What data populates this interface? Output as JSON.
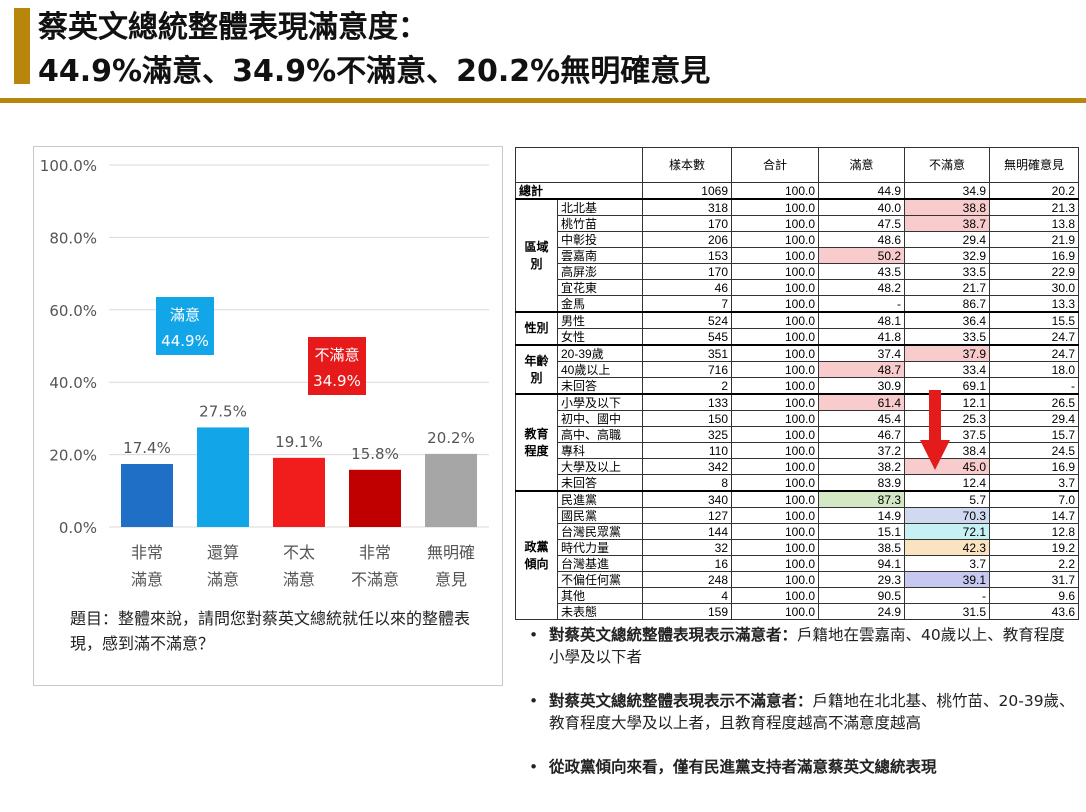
{
  "title": {
    "line1": "蔡英文總統整體表現滿意度：",
    "line2": "44.9%滿意、34.9%不滿意、20.2%無明確意見"
  },
  "chart_data": {
    "type": "bar",
    "categories": [
      [
        "非常",
        "滿意"
      ],
      [
        "還算",
        "滿意"
      ],
      [
        "不太",
        "滿意"
      ],
      [
        "非常",
        "不滿意"
      ],
      [
        "無明確",
        "意見"
      ]
    ],
    "values": [
      17.4,
      27.5,
      19.1,
      15.8,
      20.2
    ],
    "value_labels": [
      "17.4%",
      "27.5%",
      "19.1%",
      "15.8%",
      "20.2%"
    ],
    "colors": [
      "#1f6fc6",
      "#12a6e8",
      "#f11c1c",
      "#c00000",
      "#a6a6a6"
    ],
    "ylim": [
      0,
      100
    ],
    "yticks": [
      "0.0%",
      "20.0%",
      "40.0%",
      "60.0%",
      "80.0%",
      "100.0%"
    ],
    "grid": true,
    "annotations": [
      {
        "text1": "滿意",
        "text2": "44.9%",
        "color": "#12a6e8",
        "over": 1
      },
      {
        "text1": "不滿意",
        "text2": "34.9%",
        "color": "#e61a1a",
        "over": 3
      }
    ]
  },
  "question": "題目：整體來說，請問您對蔡英文總統就任以來的整體表現，感到滿不滿意？",
  "table": {
    "headers": [
      "樣本數",
      "合計",
      "滿意",
      "不滿意",
      "無明確意見"
    ],
    "total": {
      "label": "總計",
      "values": [
        "1069",
        "100.0",
        "44.9",
        "34.9",
        "20.2"
      ]
    },
    "groups": [
      {
        "name": "區域別",
        "rows": [
          {
            "label": "北北基",
            "values": [
              "318",
              "100.0",
              "40.0",
              "38.8",
              "21.3"
            ],
            "hl": {
              "3": "pink"
            }
          },
          {
            "label": "桃竹苗",
            "values": [
              "170",
              "100.0",
              "47.5",
              "38.7",
              "13.8"
            ],
            "hl": {
              "3": "pink"
            }
          },
          {
            "label": "中彰投",
            "values": [
              "206",
              "100.0",
              "48.6",
              "29.4",
              "21.9"
            ]
          },
          {
            "label": "雲嘉南",
            "values": [
              "153",
              "100.0",
              "50.2",
              "32.9",
              "16.9"
            ],
            "hl": {
              "2": "pink"
            }
          },
          {
            "label": "高屏澎",
            "values": [
              "170",
              "100.0",
              "43.5",
              "33.5",
              "22.9"
            ]
          },
          {
            "label": "宜花東",
            "values": [
              "46",
              "100.0",
              "48.2",
              "21.7",
              "30.0"
            ]
          },
          {
            "label": "金馬",
            "values": [
              "7",
              "100.0",
              "-",
              "86.7",
              "13.3"
            ]
          }
        ]
      },
      {
        "name": "性別",
        "rows": [
          {
            "label": "男性",
            "values": [
              "524",
              "100.0",
              "48.1",
              "36.4",
              "15.5"
            ]
          },
          {
            "label": "女性",
            "values": [
              "545",
              "100.0",
              "41.8",
              "33.5",
              "24.7"
            ]
          }
        ]
      },
      {
        "name": "年齡別",
        "rows": [
          {
            "label": "20-39歲",
            "values": [
              "351",
              "100.0",
              "37.4",
              "37.9",
              "24.7"
            ],
            "hl": {
              "3": "pink"
            }
          },
          {
            "label": "40歲以上",
            "values": [
              "716",
              "100.0",
              "48.7",
              "33.4",
              "18.0"
            ],
            "hl": {
              "2": "pink"
            }
          },
          {
            "label": "未回答",
            "values": [
              "2",
              "100.0",
              "30.9",
              "69.1",
              "-"
            ]
          }
        ]
      },
      {
        "name": "教育程度",
        "rows": [
          {
            "label": "小學及以下",
            "values": [
              "133",
              "100.0",
              "61.4",
              "12.1",
              "26.5"
            ],
            "hl": {
              "2": "pink"
            }
          },
          {
            "label": "初中、國中",
            "values": [
              "150",
              "100.0",
              "45.4",
              "25.3",
              "29.4"
            ]
          },
          {
            "label": "高中、高職",
            "values": [
              "325",
              "100.0",
              "46.7",
              "37.5",
              "15.7"
            ]
          },
          {
            "label": "專科",
            "values": [
              "110",
              "100.0",
              "37.2",
              "38.4",
              "24.5"
            ]
          },
          {
            "label": "大學及以上",
            "values": [
              "342",
              "100.0",
              "38.2",
              "45.0",
              "16.9"
            ],
            "hl": {
              "3": "pink"
            }
          },
          {
            "label": "未回答",
            "values": [
              "8",
              "100.0",
              "83.9",
              "12.4",
              "3.7"
            ]
          }
        ]
      },
      {
        "name": "政黨傾向",
        "rows": [
          {
            "label": "民進黨",
            "values": [
              "340",
              "100.0",
              "87.3",
              "5.7",
              "7.0"
            ],
            "hl": {
              "2": "green"
            }
          },
          {
            "label": "國民黨",
            "values": [
              "127",
              "100.0",
              "14.9",
              "70.3",
              "14.7"
            ],
            "hl": {
              "3": "blue"
            }
          },
          {
            "label": "台灣民眾黨",
            "values": [
              "144",
              "100.0",
              "15.1",
              "72.1",
              "12.8"
            ],
            "hl": {
              "3": "cyan"
            }
          },
          {
            "label": "時代力量",
            "values": [
              "32",
              "100.0",
              "38.5",
              "42.3",
              "19.2"
            ],
            "hl": {
              "3": "orange"
            }
          },
          {
            "label": "台灣基進",
            "values": [
              "16",
              "100.0",
              "94.1",
              "3.7",
              "2.2"
            ]
          },
          {
            "label": "不偏任何黨",
            "values": [
              "248",
              "100.0",
              "29.3",
              "39.1",
              "31.7"
            ],
            "hl": {
              "3": "lav"
            }
          },
          {
            "label": "其他",
            "values": [
              "4",
              "100.0",
              "90.5",
              "-",
              "9.6"
            ]
          },
          {
            "label": "未表態",
            "values": [
              "159",
              "100.0",
              "24.9",
              "31.5",
              "43.6"
            ]
          }
        ]
      }
    ]
  },
  "bullets": [
    {
      "bold": "對蔡英文總統整體表現表示滿意者：",
      "text": "戶籍地在雲嘉南、40歲以上、教育程度小學及以下者"
    },
    {
      "bold": "對蔡英文總統整體表現表示不滿意者：",
      "text": "戶籍地在北北基、桃竹苗、20-39歲、教育程度大學及以上者，且教育程度越高不滿意度越高"
    },
    {
      "bold": "從政黨傾向來看，僅有民進黨支持者滿意蔡英文總統表現",
      "text": ""
    }
  ]
}
